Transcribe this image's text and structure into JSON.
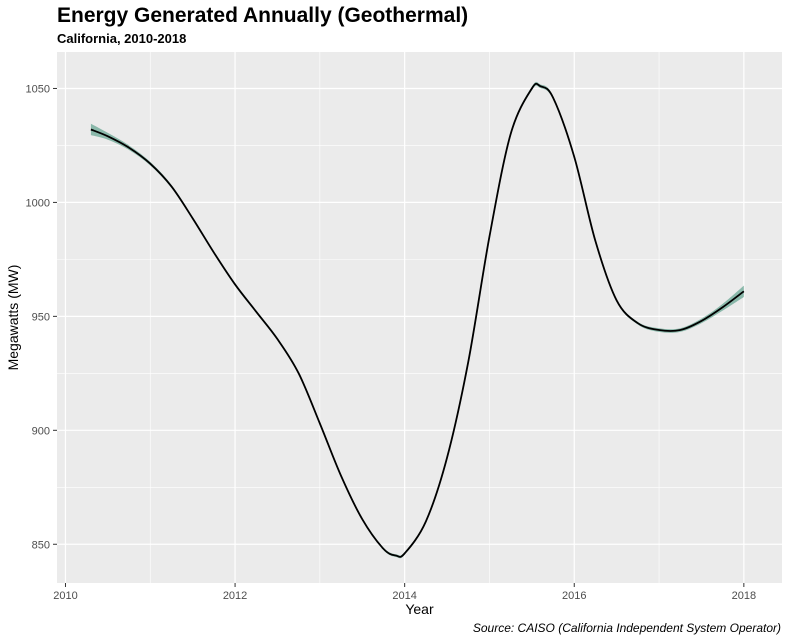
{
  "chart_data": {
    "type": "line",
    "title": "Energy Generated Annually (Geothermal)",
    "subtitle": "California, 2010-2018",
    "caption": "Source: CAISO (California Independent System Operator)",
    "xlabel": "Year",
    "ylabel": "Megawatts (MW)",
    "xlim": [
      2009.9,
      2018.45
    ],
    "ylim": [
      833,
      1066
    ],
    "x_ticks": [
      2010,
      2012,
      2014,
      2016,
      2018
    ],
    "y_ticks": [
      850,
      900,
      950,
      1000,
      1050
    ],
    "grid": true,
    "legend": "none",
    "colors": {
      "panel": "#ebebeb",
      "grid": "#ffffff",
      "line": "#000000",
      "band": "#7fb3a3"
    },
    "series": [
      {
        "x": [
          2010.3,
          2010.5,
          2010.75,
          2011.0,
          2011.25,
          2011.5,
          2011.75,
          2012.0,
          2012.25,
          2012.5,
          2012.75,
          2013.0,
          2013.25,
          2013.5,
          2013.75,
          2013.9,
          2014.0,
          2014.25,
          2014.5,
          2014.75,
          2015.0,
          2015.25,
          2015.5,
          2015.6,
          2015.75,
          2016.0,
          2016.25,
          2016.5,
          2016.75,
          2017.0,
          2017.25,
          2017.5,
          2017.75,
          2018.0
        ],
        "y": [
          1032,
          1029,
          1024,
          1017,
          1007,
          993,
          978,
          964,
          952,
          940,
          925,
          903,
          880,
          861,
          848,
          845,
          846,
          860,
          888,
          930,
          985,
          1030,
          1050,
          1051,
          1046,
          1020,
          983,
          957,
          947,
          944,
          944,
          948,
          954,
          961
        ],
        "band": [
          2.5,
          1.5,
          1.0,
          0.8,
          0.7,
          0.6,
          0.6,
          0.6,
          0.6,
          0.6,
          0.6,
          0.6,
          0.6,
          0.6,
          0.6,
          0.6,
          0.6,
          0.6,
          0.6,
          0.6,
          0.6,
          0.6,
          0.8,
          0.8,
          0.8,
          0.6,
          0.6,
          0.6,
          0.6,
          0.8,
          0.8,
          1.0,
          1.5,
          2.5
        ]
      }
    ]
  }
}
